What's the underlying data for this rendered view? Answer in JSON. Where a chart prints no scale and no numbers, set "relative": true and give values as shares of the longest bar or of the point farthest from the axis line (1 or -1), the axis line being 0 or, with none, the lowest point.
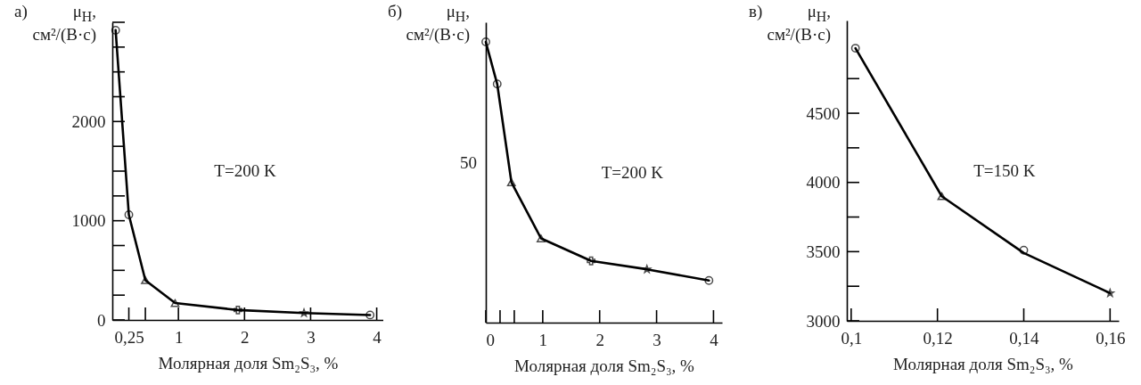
{
  "chart_data": [
    {
      "type": "line",
      "title": "а)",
      "ylabel": "μ$_{H}$,\nсм²/(В·с)",
      "xlabel": "Молярная доля Sm₂S₃, %",
      "annotations": [
        "T=200 K"
      ],
      "x": [
        0.05,
        0.25,
        0.5,
        0.95,
        1.9,
        2.9,
        3.9
      ],
      "series": [
        {
          "type": "line",
          "color": "#000000",
          "marker": "none",
          "values": [
            2920,
            1060,
            400,
            170,
            100,
            70,
            50
          ]
        },
        {
          "type": "scatter",
          "color": "#000000",
          "marker": "circle",
          "x": [
            0.05,
            0.25,
            3.9
          ],
          "values": [
            2920,
            1060,
            50
          ]
        },
        {
          "type": "scatter",
          "color": "#000000",
          "marker": "triangle",
          "x": [
            0.5,
            0.95
          ],
          "values": [
            400,
            170
          ]
        },
        {
          "type": "scatter",
          "color": "#000000",
          "marker": "cross",
          "x": [
            1.9
          ],
          "values": [
            100
          ]
        },
        {
          "type": "scatter",
          "color": "#000000",
          "marker": "star",
          "x": [
            2.9
          ],
          "values": [
            70
          ]
        }
      ],
      "xlim": [
        0,
        4.1
      ],
      "xticks": [
        {
          "value": 0.25,
          "label": "0,25"
        },
        {
          "value": 0.5,
          "label": null
        },
        1,
        2,
        3,
        4
      ],
      "ylim": [
        0,
        3000
      ],
      "yticks": [
        0,
        {
          "value": 250,
          "label": null
        },
        {
          "value": 500,
          "label": null
        },
        {
          "value": 750,
          "label": null
        },
        1000,
        {
          "value": 1250,
          "label": null
        },
        {
          "value": 1500,
          "label": null
        },
        {
          "value": 1750,
          "label": null
        },
        2000,
        {
          "value": 2250,
          "label": null
        },
        {
          "value": 2500,
          "label": null
        },
        {
          "value": 2750,
          "label": null
        },
        {
          "value": 3000,
          "label": null
        }
      ],
      "grid": false
    },
    {
      "type": "line",
      "title": "б)",
      "ylabel": "μ$_{H}$,\nсм²/(В·с)",
      "xlabel": "Молярная доля Sm₂S₃, %",
      "annotations": [
        "T=200 K",
        "50"
      ],
      "relative": true,
      "x": [
        0,
        0.2,
        0.45,
        0.97,
        1.85,
        2.83,
        3.92
      ],
      "series": [
        {
          "type": "line",
          "color": "#000000",
          "marker": "none",
          "values": [
            1,
            0.85,
            0.5,
            0.3,
            0.22,
            0.19,
            0.15
          ]
        },
        {
          "type": "scatter",
          "color": "#000000",
          "marker": "circle",
          "x": [
            0,
            0.2,
            3.92
          ],
          "values": [
            1,
            0.85,
            0.15
          ]
        },
        {
          "type": "scatter",
          "color": "#000000",
          "marker": "triangle",
          "x": [
            0.45,
            0.97
          ],
          "values": [
            0.5,
            0.3
          ]
        },
        {
          "type": "scatter",
          "color": "#000000",
          "marker": "cross",
          "x": [
            1.85
          ],
          "values": [
            0.22
          ]
        },
        {
          "type": "scatter",
          "color": "#000000",
          "marker": "star",
          "x": [
            2.83
          ],
          "values": [
            0.19
          ]
        }
      ],
      "xlim": [
        0,
        4.15
      ],
      "xticks": [
        0,
        {
          "value": 0.25,
          "label": null
        },
        {
          "value": 0.5,
          "label": null
        },
        1,
        2,
        3,
        4
      ],
      "grid": false
    },
    {
      "type": "line",
      "title": "в)",
      "ylabel": "μ$_{H}$,\nсм²/(В·с)",
      "xlabel": "Молярная доля Sm₂S₃, %",
      "annotations": [
        "T=150 K"
      ],
      "x": [
        0.101,
        0.121,
        0.14,
        0.16
      ],
      "series": [
        {
          "type": "line",
          "color": "#000000",
          "marker": "none",
          "values": [
            4970,
            3900,
            3490,
            3200
          ]
        },
        {
          "type": "scatter",
          "color": "#000000",
          "marker": "circle",
          "x": [
            0.101,
            0.14
          ],
          "values": [
            4970,
            3510
          ]
        },
        {
          "type": "scatter",
          "color": "#000000",
          "marker": "triangle",
          "x": [
            0.121
          ],
          "values": [
            3900
          ]
        },
        {
          "type": "scatter",
          "color": "#000000",
          "marker": "star",
          "x": [
            0.16
          ],
          "values": [
            3200
          ]
        }
      ],
      "xlim": [
        0.099,
        0.162
      ],
      "xticks": [
        {
          "value": 0.1,
          "label": "0,1"
        },
        {
          "value": 0.12,
          "label": "0,12"
        },
        {
          "value": 0.14,
          "label": "0,14"
        },
        {
          "value": 0.16,
          "label": "0,16"
        }
      ],
      "ylim": [
        3000,
        5170
      ],
      "yticks": [
        3000,
        {
          "value": 3250,
          "label": null
        },
        3500,
        {
          "value": 3750,
          "label": null
        },
        4000,
        {
          "value": 4250,
          "label": null
        },
        4500,
        {
          "value": 4750,
          "label": null
        }
      ],
      "grid": false
    }
  ]
}
